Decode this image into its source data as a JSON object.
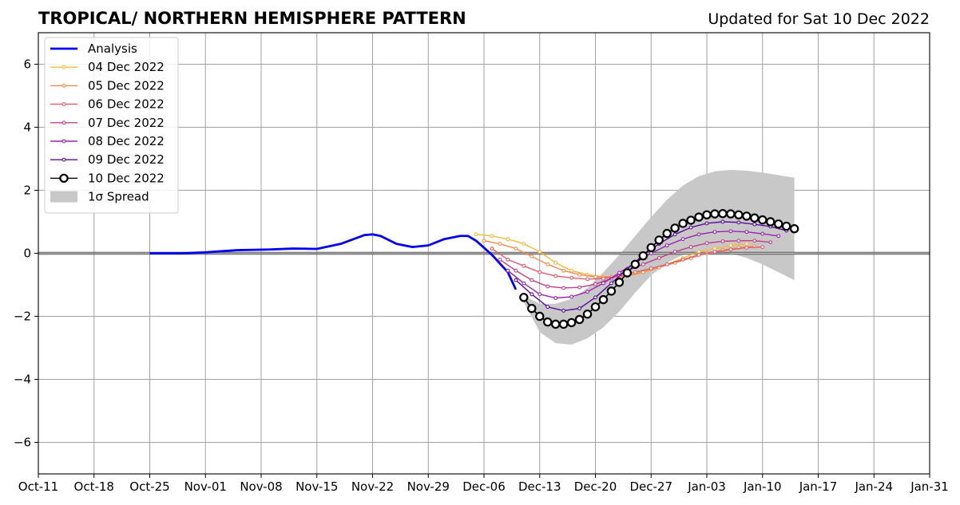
{
  "chart_data": {
    "type": "line",
    "title": "TROPICAL/ NORTHERN HEMISPHERE PATTERN",
    "subtitle": "Updated for Sat 10 Dec 2022",
    "xlabel": "",
    "ylabel": "",
    "x_ticks": [
      "Oct-11",
      "Oct-18",
      "Oct-25",
      "Nov-01",
      "Nov-08",
      "Nov-15",
      "Nov-22",
      "Nov-29",
      "Dec-06",
      "Dec-13",
      "Dec-20",
      "Dec-27",
      "Jan-03",
      "Jan-10",
      "Jan-17",
      "Jan-24",
      "Jan-31"
    ],
    "x_tick_dates": [
      "2022-10-11",
      "2022-10-18",
      "2022-10-25",
      "2022-11-01",
      "2022-11-08",
      "2022-11-15",
      "2022-11-22",
      "2022-11-29",
      "2022-12-06",
      "2022-12-13",
      "2022-12-20",
      "2022-12-27",
      "2023-01-03",
      "2023-01-10",
      "2023-01-17",
      "2023-01-24",
      "2023-01-31"
    ],
    "xlim": [
      "2022-10-11",
      "2023-01-31"
    ],
    "y_ticks": [
      -6,
      -4,
      -2,
      0,
      2,
      4,
      6
    ],
    "y_tick_labels": [
      "−6",
      "−4",
      "−2",
      "0",
      "2",
      "4",
      "6"
    ],
    "ylim": [
      -7,
      7
    ],
    "grid": true,
    "legend_position": "top-left",
    "series": [
      {
        "name": "Analysis",
        "color": "#0000ee",
        "style": "thick-line",
        "x": [
          "2022-10-25",
          "2022-10-29",
          "2022-11-01",
          "2022-11-05",
          "2022-11-09",
          "2022-11-12",
          "2022-11-15",
          "2022-11-18",
          "2022-11-21",
          "2022-11-22",
          "2022-11-23",
          "2022-11-25",
          "2022-11-27",
          "2022-11-29",
          "2022-12-01",
          "2022-12-03",
          "2022-12-04",
          "2022-12-05",
          "2022-12-07",
          "2022-12-09",
          "2022-12-10"
        ],
        "y": [
          0.0,
          0.0,
          0.03,
          0.1,
          0.12,
          0.15,
          0.14,
          0.3,
          0.58,
          0.6,
          0.55,
          0.3,
          0.2,
          0.25,
          0.45,
          0.55,
          0.55,
          0.4,
          -0.05,
          -0.6,
          -1.15
        ]
      },
      {
        "name": "04 Dec 2022",
        "color": "#f6b93b",
        "style": "small-marker",
        "x": [
          "2022-12-05",
          "2022-12-07",
          "2022-12-09",
          "2022-12-11",
          "2022-12-13",
          "2022-12-15",
          "2022-12-17",
          "2022-12-19",
          "2022-12-21",
          "2022-12-23",
          "2022-12-25",
          "2022-12-27",
          "2022-12-29",
          "2022-12-31",
          "2023-01-02",
          "2023-01-04",
          "2023-01-06",
          "2023-01-08"
        ],
        "y": [
          0.6,
          0.55,
          0.45,
          0.3,
          0.05,
          -0.3,
          -0.55,
          -0.68,
          -0.75,
          -0.72,
          -0.65,
          -0.5,
          -0.35,
          -0.15,
          0.05,
          0.15,
          0.25,
          0.3
        ]
      },
      {
        "name": "05 Dec 2022",
        "color": "#f08c4a",
        "style": "small-marker",
        "x": [
          "2022-12-06",
          "2022-12-08",
          "2022-12-10",
          "2022-12-12",
          "2022-12-14",
          "2022-12-16",
          "2022-12-18",
          "2022-12-20",
          "2022-12-22",
          "2022-12-24",
          "2022-12-26",
          "2022-12-28",
          "2022-12-30",
          "2023-01-01",
          "2023-01-03",
          "2023-01-05",
          "2023-01-07",
          "2023-01-09"
        ],
        "y": [
          0.4,
          0.3,
          0.15,
          -0.1,
          -0.35,
          -0.55,
          -0.68,
          -0.75,
          -0.75,
          -0.72,
          -0.6,
          -0.45,
          -0.3,
          -0.15,
          0.0,
          0.1,
          0.18,
          0.22
        ]
      },
      {
        "name": "06 Dec 2022",
        "color": "#e05d6f",
        "style": "small-marker",
        "x": [
          "2022-12-07",
          "2022-12-09",
          "2022-12-11",
          "2022-12-13",
          "2022-12-15",
          "2022-12-17",
          "2022-12-19",
          "2022-12-21",
          "2022-12-23",
          "2022-12-25",
          "2022-12-27",
          "2022-12-29",
          "2022-12-31",
          "2023-01-02",
          "2023-01-04",
          "2023-01-06",
          "2023-01-08",
          "2023-01-10"
        ],
        "y": [
          0.15,
          -0.2,
          -0.4,
          -0.6,
          -0.72,
          -0.78,
          -0.82,
          -0.8,
          -0.72,
          -0.6,
          -0.48,
          -0.35,
          -0.2,
          -0.05,
          0.05,
          0.12,
          0.18,
          0.2
        ]
      },
      {
        "name": "07 Dec 2022",
        "color": "#c13e8a",
        "style": "small-marker",
        "x": [
          "2022-12-08",
          "2022-12-10",
          "2022-12-12",
          "2022-12-14",
          "2022-12-16",
          "2022-12-18",
          "2022-12-20",
          "2022-12-22",
          "2022-12-24",
          "2022-12-26",
          "2022-12-28",
          "2022-12-30",
          "2023-01-01",
          "2023-01-03",
          "2023-01-05",
          "2023-01-07",
          "2023-01-09",
          "2023-01-11"
        ],
        "y": [
          -0.2,
          -0.55,
          -0.85,
          -1.05,
          -1.1,
          -1.08,
          -0.98,
          -0.8,
          -0.55,
          -0.35,
          -0.15,
          0.05,
          0.2,
          0.32,
          0.38,
          0.4,
          0.4,
          0.35
        ]
      },
      {
        "name": "08 Dec 2022",
        "color": "#9b22b0",
        "style": "small-marker",
        "x": [
          "2022-12-09",
          "2022-12-11",
          "2022-12-13",
          "2022-12-15",
          "2022-12-17",
          "2022-12-19",
          "2022-12-21",
          "2022-12-23",
          "2022-12-25",
          "2022-12-27",
          "2022-12-29",
          "2022-12-31",
          "2023-01-02",
          "2023-01-04",
          "2023-01-06",
          "2023-01-08",
          "2023-01-10",
          "2023-01-12"
        ],
        "y": [
          -0.55,
          -0.95,
          -1.3,
          -1.42,
          -1.38,
          -1.22,
          -0.95,
          -0.62,
          -0.3,
          0.0,
          0.25,
          0.45,
          0.6,
          0.68,
          0.7,
          0.68,
          0.62,
          0.55
        ]
      },
      {
        "name": "09 Dec 2022",
        "color": "#5a0aa0",
        "style": "small-marker",
        "x": [
          "2022-12-10",
          "2022-12-12",
          "2022-12-14",
          "2022-12-16",
          "2022-12-18",
          "2022-12-20",
          "2022-12-22",
          "2022-12-24",
          "2022-12-26",
          "2022-12-28",
          "2022-12-30",
          "2023-01-01",
          "2023-01-03",
          "2023-01-05",
          "2023-01-07",
          "2023-01-09",
          "2023-01-11",
          "2023-01-13"
        ],
        "y": [
          -0.85,
          -1.3,
          -1.7,
          -1.82,
          -1.75,
          -1.4,
          -0.95,
          -0.5,
          -0.05,
          0.3,
          0.6,
          0.82,
          0.95,
          1.0,
          0.98,
          0.92,
          0.85,
          0.72
        ]
      },
      {
        "name": "10 Dec 2022",
        "color": "#000000",
        "style": "large-open-marker",
        "x": [
          "2022-12-11",
          "2022-12-12",
          "2022-12-13",
          "2022-12-14",
          "2022-12-15",
          "2022-12-16",
          "2022-12-17",
          "2022-12-18",
          "2022-12-19",
          "2022-12-20",
          "2022-12-21",
          "2022-12-22",
          "2022-12-23",
          "2022-12-24",
          "2022-12-25",
          "2022-12-26",
          "2022-12-27",
          "2022-12-28",
          "2022-12-29",
          "2022-12-30",
          "2022-12-31",
          "2023-01-01",
          "2023-01-02",
          "2023-01-03",
          "2023-01-04",
          "2023-01-05",
          "2023-01-06",
          "2023-01-07",
          "2023-01-08",
          "2023-01-09",
          "2023-01-10",
          "2023-01-11",
          "2023-01-12",
          "2023-01-13",
          "2023-01-14"
        ],
        "y": [
          -1.4,
          -1.75,
          -2.0,
          -2.18,
          -2.25,
          -2.25,
          -2.2,
          -2.1,
          -1.93,
          -1.7,
          -1.47,
          -1.2,
          -0.92,
          -0.62,
          -0.35,
          -0.08,
          0.18,
          0.42,
          0.63,
          0.8,
          0.95,
          1.05,
          1.15,
          1.22,
          1.25,
          1.26,
          1.25,
          1.22,
          1.18,
          1.12,
          1.06,
          1.0,
          0.93,
          0.86,
          0.78
        ]
      }
    ],
    "spread": {
      "name": "1σ Spread",
      "color": "#c8c8c8",
      "x": [
        "2022-12-11",
        "2022-12-13",
        "2022-12-15",
        "2022-12-17",
        "2022-12-19",
        "2022-12-21",
        "2022-12-23",
        "2022-12-25",
        "2022-12-27",
        "2022-12-29",
        "2022-12-31",
        "2023-01-02",
        "2023-01-04",
        "2023-01-06",
        "2023-01-08",
        "2023-01-10",
        "2023-01-12",
        "2023-01-14"
      ],
      "upper": [
        -1.35,
        -1.6,
        -1.6,
        -1.45,
        -1.1,
        -0.6,
        -0.05,
        0.55,
        1.15,
        1.7,
        2.15,
        2.45,
        2.6,
        2.65,
        2.62,
        2.56,
        2.48,
        2.4
      ],
      "lower": [
        -1.55,
        -2.5,
        -2.85,
        -2.9,
        -2.7,
        -2.35,
        -1.85,
        -1.25,
        -0.7,
        -0.3,
        -0.05,
        0.05,
        0.05,
        0.0,
        -0.15,
        -0.35,
        -0.6,
        -0.85
      ]
    }
  }
}
